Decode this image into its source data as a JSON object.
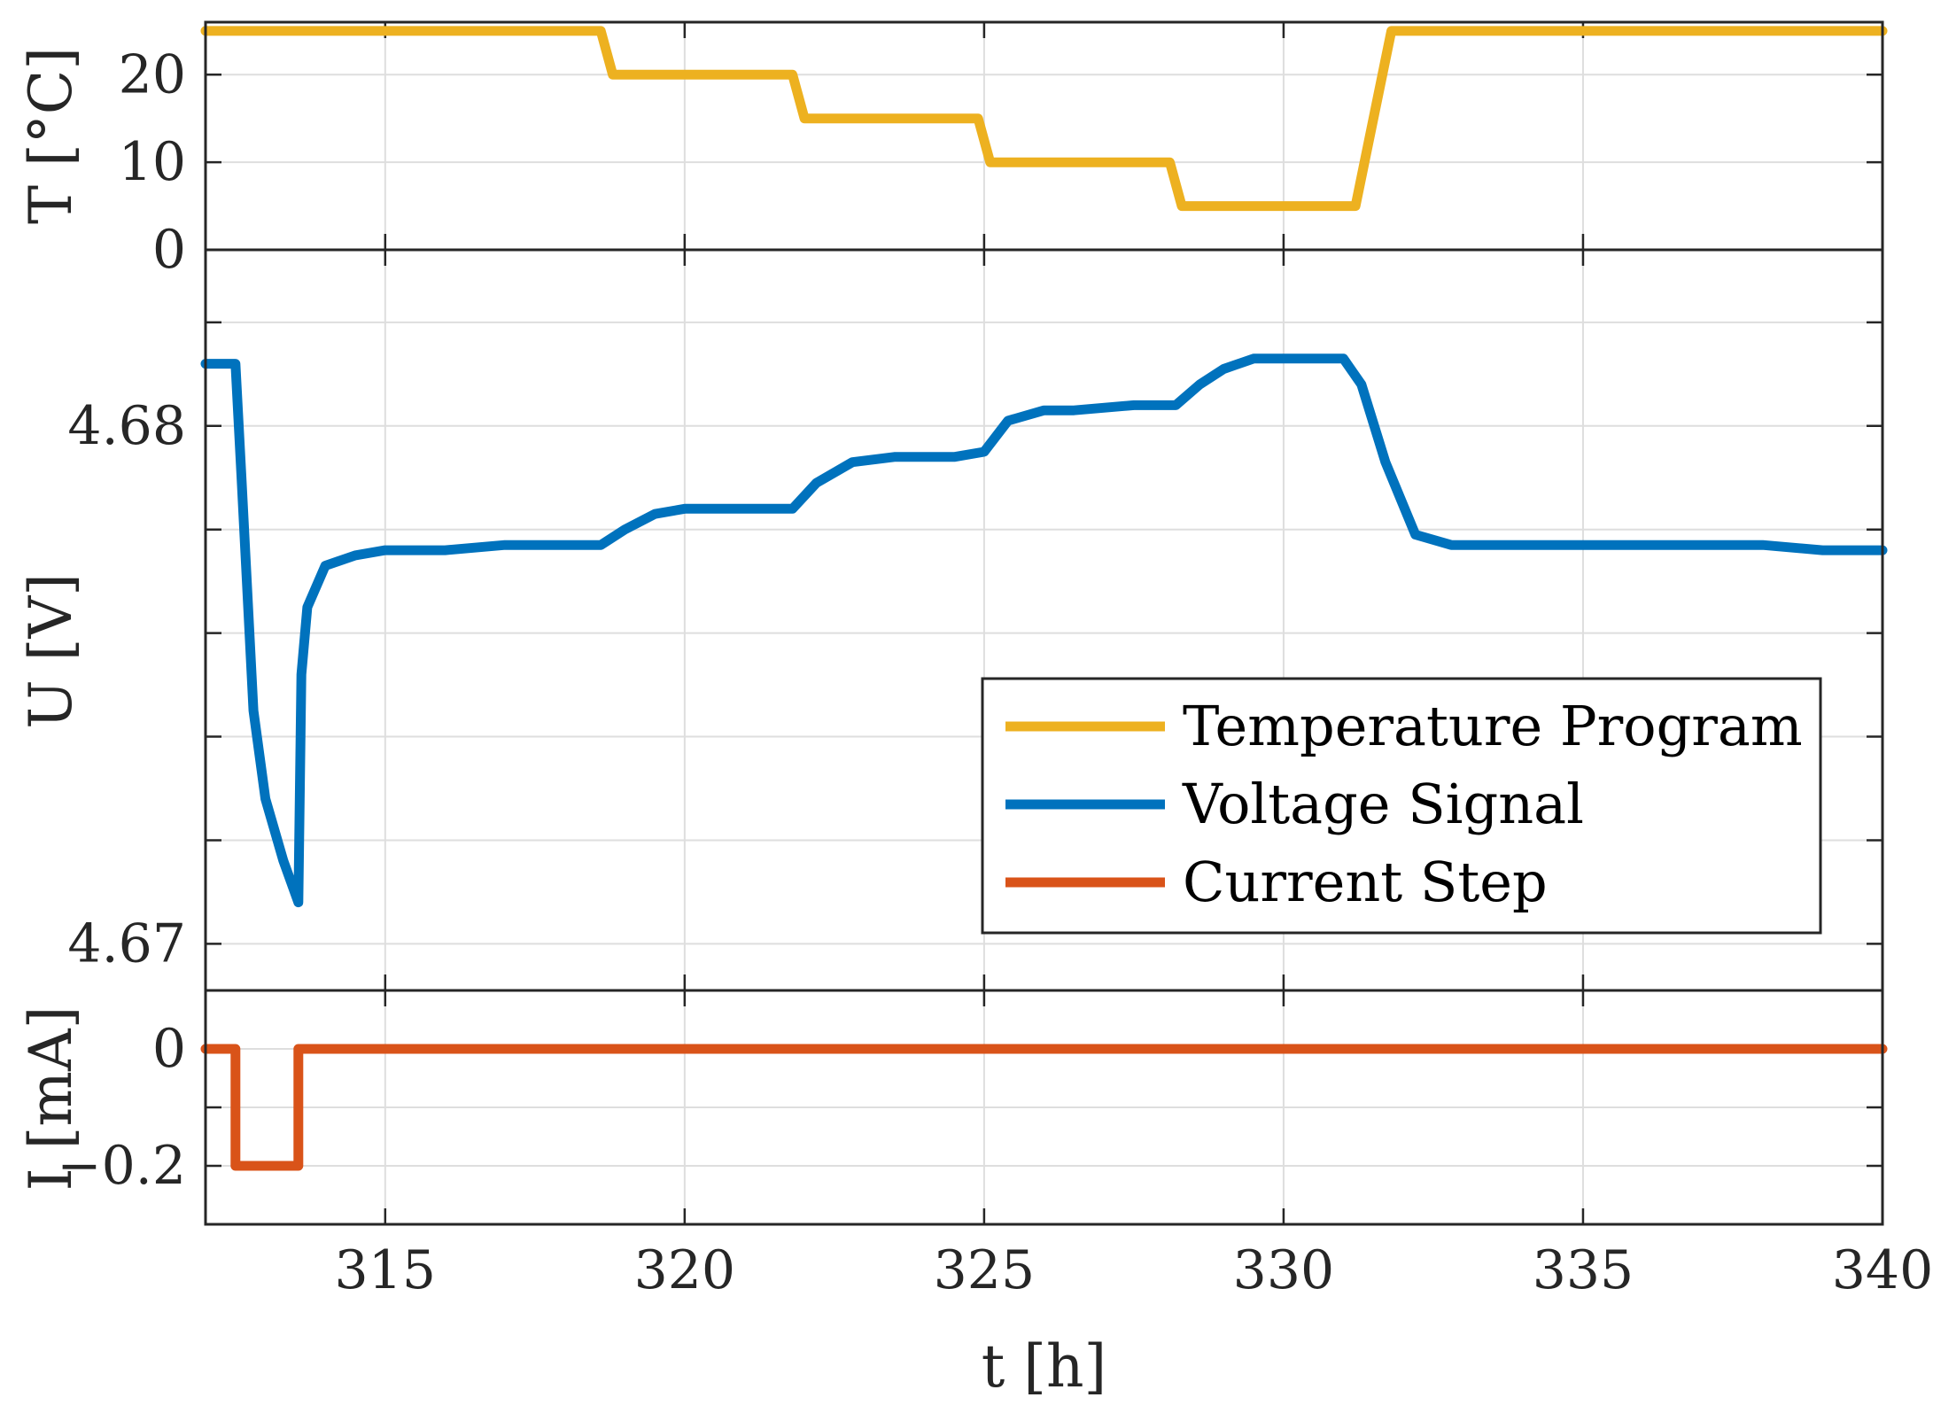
{
  "chart_data": [
    {
      "type": "line",
      "panel": "temperature",
      "ylabel": "T [°C]",
      "ylim": [
        0,
        26
      ],
      "yticks": [
        0,
        10,
        20
      ],
      "ytick_labels": [
        "0",
        "10",
        "20"
      ],
      "xlim": [
        312,
        340
      ],
      "grid": true,
      "series": [
        {
          "name": "Temperature Program",
          "color": "#EDB120",
          "x": [
            312,
            318.6,
            318.8,
            321.8,
            322.0,
            324.9,
            325.1,
            328.1,
            328.3,
            331.2,
            331.8,
            340
          ],
          "values": [
            25,
            25,
            20,
            20,
            15,
            15,
            10,
            10,
            5,
            5,
            25,
            25
          ]
        }
      ]
    },
    {
      "type": "line",
      "panel": "voltage",
      "ylabel": "U [V]",
      "ylim": [
        4.6691,
        4.6834
      ],
      "yticks": [
        4.67,
        4.672,
        4.674,
        4.676,
        4.678,
        4.68,
        4.682
      ],
      "ytick_labels": [
        "4.67",
        "",
        "",
        "",
        "",
        "4.68",
        ""
      ],
      "xlim": [
        312,
        340
      ],
      "grid": true,
      "series": [
        {
          "name": "Voltage Signal",
          "color": "#0072BD",
          "x": [
            312.0,
            312.5,
            312.6,
            312.8,
            313.0,
            313.3,
            313.55,
            313.6,
            313.7,
            314.0,
            314.5,
            315.0,
            316.0,
            317.0,
            318.0,
            318.6,
            319.0,
            319.5,
            320.0,
            321.0,
            321.8,
            322.2,
            322.8,
            323.5,
            324.5,
            325.0,
            325.4,
            326.0,
            326.5,
            327.5,
            328.2,
            328.6,
            329.0,
            329.5,
            330.0,
            330.5,
            331.0,
            331.3,
            331.7,
            332.2,
            332.8,
            333.5,
            334.5,
            336.0,
            337.0,
            338.0,
            339.0,
            340.0
          ],
          "values": [
            4.6812,
            4.6812,
            4.679,
            4.6745,
            4.6728,
            4.6716,
            4.6708,
            4.6752,
            4.6765,
            4.6773,
            4.6775,
            4.6776,
            4.6776,
            4.6777,
            4.6777,
            4.6777,
            4.678,
            4.6783,
            4.6784,
            4.6784,
            4.6784,
            4.6789,
            4.6793,
            4.6794,
            4.6794,
            4.6795,
            4.6801,
            4.6803,
            4.6803,
            4.6804,
            4.6804,
            4.6808,
            4.6811,
            4.6813,
            4.6813,
            4.6813,
            4.6813,
            4.6808,
            4.6793,
            4.6779,
            4.6777,
            4.6777,
            4.6777,
            4.6777,
            4.6777,
            4.6777,
            4.6776,
            4.6776
          ]
        }
      ]
    },
    {
      "type": "line",
      "panel": "current",
      "ylabel": "I [mA]",
      "ylim": [
        -0.3,
        0.1
      ],
      "yticks": [
        -0.3,
        -0.2,
        -0.1,
        0,
        0.1
      ],
      "ytick_labels": [
        "",
        "−0.2",
        "",
        "0",
        ""
      ],
      "xlim": [
        312,
        340
      ],
      "xticks": [
        315,
        320,
        325,
        330,
        335,
        340
      ],
      "xtick_labels": [
        "315",
        "320",
        "325",
        "330",
        "335",
        "340"
      ],
      "xlabel": "t [h]",
      "grid": true,
      "series": [
        {
          "name": "Current Step",
          "color": "#D95319",
          "x": [
            312,
            312.5,
            312.5,
            313.55,
            313.55,
            340
          ],
          "values": [
            0,
            0,
            -0.2,
            -0.2,
            0,
            0
          ]
        }
      ]
    }
  ],
  "legend": {
    "placement": "lower-right of voltage panel",
    "entries": [
      {
        "label": "Temperature Program",
        "color": "#EDB120"
      },
      {
        "label": "Voltage Signal",
        "color": "#0072BD"
      },
      {
        "label": "Current Step",
        "color": "#D95319"
      }
    ]
  }
}
